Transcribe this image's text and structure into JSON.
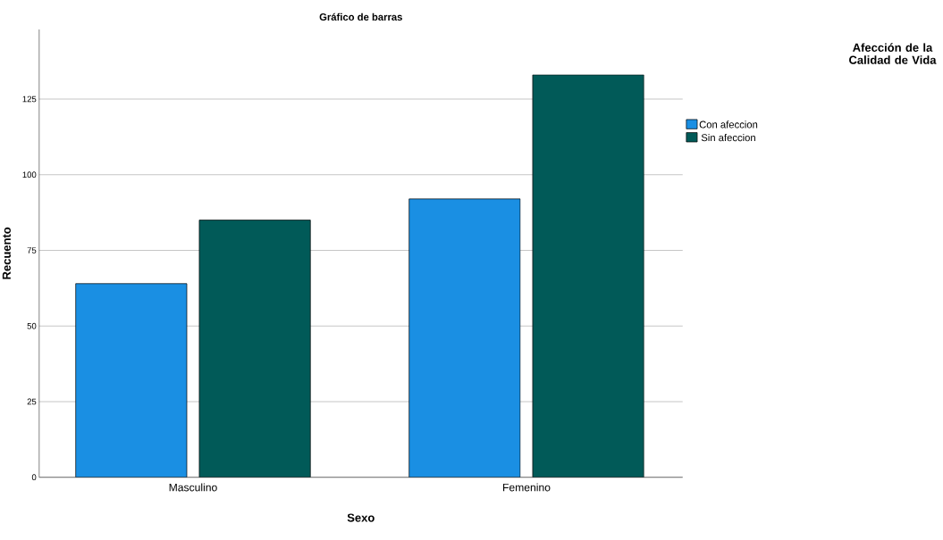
{
  "chart_data": {
    "type": "bar",
    "title": "Gráfico de barras",
    "xlabel": "Sexo",
    "ylabel": "Recuento",
    "legend_title": "Afección de la Calidad de Vida",
    "categories": [
      "Masculino",
      "Femenino"
    ],
    "series": [
      {
        "name": "Con afeccion",
        "color": "#1a8fe3",
        "values": [
          64,
          92
        ]
      },
      {
        "name": "Sin afeccion",
        "color": "#015a58",
        "values": [
          85,
          133
        ]
      }
    ],
    "ylim": [
      0,
      148
    ],
    "yticks": [
      0,
      25,
      50,
      75,
      100,
      125
    ],
    "grid": "y",
    "legend": "top right"
  }
}
